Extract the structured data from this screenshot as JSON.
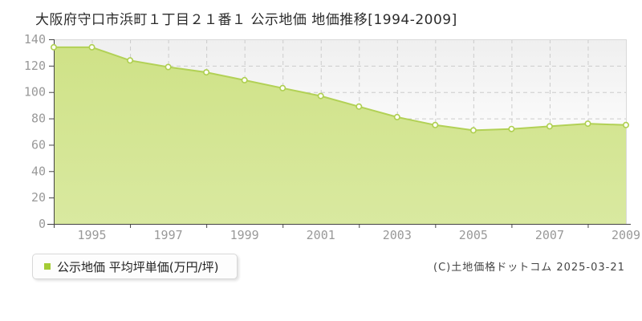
{
  "title": "大阪府守口市浜町１丁目２１番１ 公示地価 地価推移[1994-2009]",
  "legend": {
    "marker_color": "#a4cc35",
    "label": "公示地価 平均坪単価(万円/坪)"
  },
  "footer": {
    "copyright": "(C)土地価格ドットコム 2025-03-21"
  },
  "chart_data": {
    "type": "area",
    "title": "大阪府守口市浜町１丁目２１番１ 公示地価 地価推移[1994-2009]",
    "series_name": "公示地価 平均坪単価(万円/坪)",
    "x": [
      1994,
      1995,
      1996,
      1997,
      1998,
      1999,
      2000,
      2001,
      2002,
      2003,
      2004,
      2005,
      2006,
      2007,
      2008,
      2009
    ],
    "values": [
      134,
      134,
      124,
      119,
      115,
      109,
      103,
      97,
      89,
      81,
      75,
      71,
      72,
      74,
      76,
      75
    ],
    "xlabel": "",
    "ylabel": "万円/坪",
    "ylim": [
      0,
      140
    ],
    "ytick_interval": 20,
    "yticks": [
      0,
      20,
      40,
      60,
      80,
      100,
      120,
      140
    ],
    "xtick_labels": [
      "1995",
      "1997",
      "1999",
      "2001",
      "2003",
      "2005",
      "2007",
      "2009"
    ],
    "grid": true,
    "legend_position": "bottom-left",
    "colors": {
      "area_fill_top": "#cfe287",
      "area_fill_bottom": "#d9e9a0",
      "line": "#b2d156",
      "marker_fill": "#fffef5",
      "marker_stroke": "#aecf50",
      "grid": "#cccccc",
      "axis": "#444444",
      "tick_label": "#999999",
      "plot_bg_top": "#efefef",
      "plot_bg_bottom": "#ffffff",
      "plot_border": "#d9d9d9"
    }
  }
}
